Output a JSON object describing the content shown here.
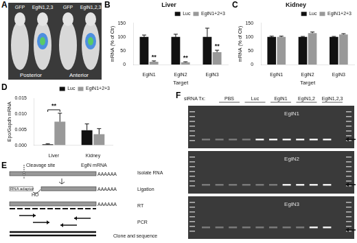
{
  "panels": {
    "A": {
      "panel": "A",
      "labels": [
        "GFP",
        "EglN1,2,3",
        "GFP",
        "EglN1,2,3"
      ],
      "views": [
        "Posterior",
        "Anterior"
      ]
    },
    "E": {
      "panel": "E",
      "cleavage": "Cleavage site",
      "mrna": "EglN mRNA",
      "polyA": "AAAAAA",
      "adaptor": "RNA adaptor",
      "ho": "HO",
      "steps": [
        "Isolate RNA",
        "Ligation",
        "RT",
        "PCR",
        "Clone and sequence"
      ]
    },
    "F": {
      "panel": "F",
      "row_label": "siRNA Tx:",
      "lanes": [
        "PBS",
        "Luc",
        "EglN1",
        "EglN1,2",
        "EglN1,2,3"
      ],
      "gels": [
        "EglN1",
        "EglN2",
        "EglN3"
      ]
    }
  },
  "chart_data": [
    {
      "panel": "B",
      "type": "bar",
      "title": "Liver",
      "xlabel": "Target",
      "ylabel": "mRNA (% of Ctr)",
      "categories": [
        "EglN1",
        "EglN2",
        "EglN3"
      ],
      "series": [
        {
          "name": "Luc",
          "color": "#111111",
          "values": [
            100,
            100,
            100
          ],
          "errors": [
            7,
            10,
            32
          ]
        },
        {
          "name": "EglN1+2+3",
          "color": "#999999",
          "values": [
            10,
            8,
            45
          ],
          "errors": [
            3,
            2,
            7
          ]
        }
      ],
      "ylim": [
        0,
        150
      ],
      "yticks": [
        0,
        50,
        100,
        150
      ],
      "grid": false,
      "legend": "upper right",
      "annotations": [
        {
          "text": "**",
          "category": "EglN1",
          "series": "EglN1+2+3"
        },
        {
          "text": "**",
          "category": "EglN2",
          "series": "EglN1+2+3"
        },
        {
          "text": "**",
          "category": "EglN3",
          "series": "EglN1+2+3"
        }
      ]
    },
    {
      "panel": "C",
      "type": "bar",
      "title": "Kidney",
      "xlabel": "Target",
      "ylabel": "mRNA (% of Ctr)",
      "categories": [
        "EglN1",
        "EglN2",
        "EglN3"
      ],
      "series": [
        {
          "name": "Luc",
          "color": "#111111",
          "values": [
            100,
            100,
            100
          ],
          "errors": [
            3,
            2,
            2
          ]
        },
        {
          "name": "EglN1+2+3",
          "color": "#999999",
          "values": [
            100,
            114,
            109
          ],
          "errors": [
            3,
            4,
            3
          ]
        }
      ],
      "ylim": [
        0,
        150
      ],
      "yticks": [
        0,
        50,
        100,
        150
      ],
      "grid": false,
      "legend": "upper right"
    },
    {
      "panel": "D",
      "type": "bar",
      "ylabel": "Epo/Gapdh mRNA",
      "categories": [
        "Liver",
        "Kidney"
      ],
      "series": [
        {
          "name": "Luc",
          "color": "#111111",
          "values": [
            0.0003,
            0.0048
          ],
          "errors": [
            0.0002,
            0.002
          ]
        },
        {
          "name": "EglN1+2+3",
          "color": "#999999",
          "values": [
            0.0075,
            0.0035
          ],
          "errors": [
            0.0027,
            0.0018
          ]
        }
      ],
      "ylim": [
        0,
        0.015
      ],
      "yticks": [
        {
          "value": 0,
          "label": "0.000"
        },
        {
          "value": 0.005,
          "label": "0.005"
        },
        {
          "value": 0.01,
          "label": "0.010"
        },
        {
          "value": 0.015,
          "label": "0.015"
        }
      ],
      "grid": false,
      "legend": "upper right",
      "annotations": [
        {
          "text": "**",
          "category": "Liver",
          "bracket": true
        }
      ]
    }
  ]
}
